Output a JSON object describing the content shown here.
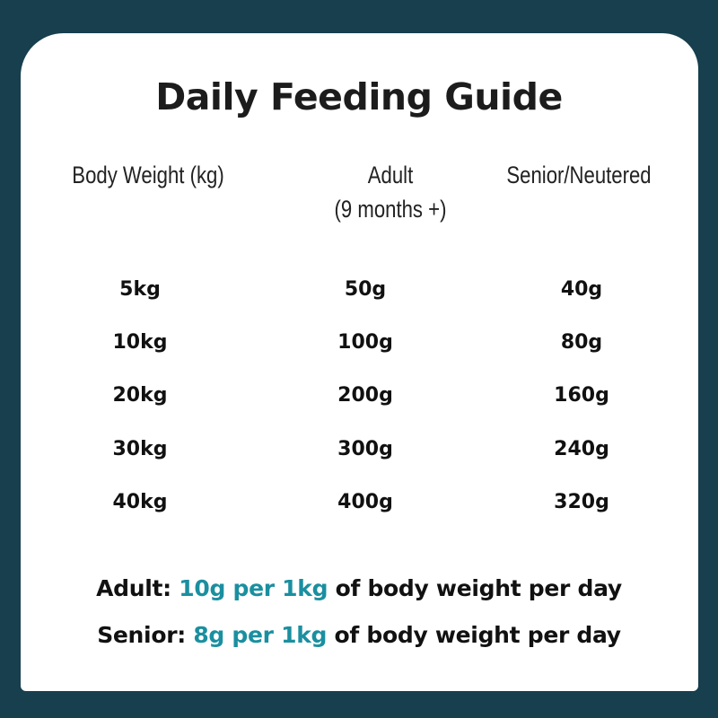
{
  "title": "Daily Feeding Guide",
  "headers": [
    "Body Weight (kg)",
    "Adult",
    "(9 months +)",
    "Senior/Neutered"
  ],
  "rows": [
    [
      "5kg",
      "50g",
      "40g"
    ],
    [
      "10kg",
      "100g",
      "80g"
    ],
    [
      "20kg",
      "200g",
      "160g"
    ],
    [
      "30kg",
      "300g",
      "240g"
    ],
    [
      "40kg",
      "400g",
      "320g"
    ]
  ],
  "notes": [
    {
      "label": "Adult:",
      "highlight": "10g per 1kg",
      "rest": "of body weight per day"
    },
    {
      "label": "Senior:",
      "highlight": "8g per 1kg",
      "rest": "of body weight per day"
    }
  ],
  "colors": {
    "background": "#173f4e",
    "card": "#ffffff",
    "accent": "#1a8fa0",
    "text": "#111111"
  }
}
